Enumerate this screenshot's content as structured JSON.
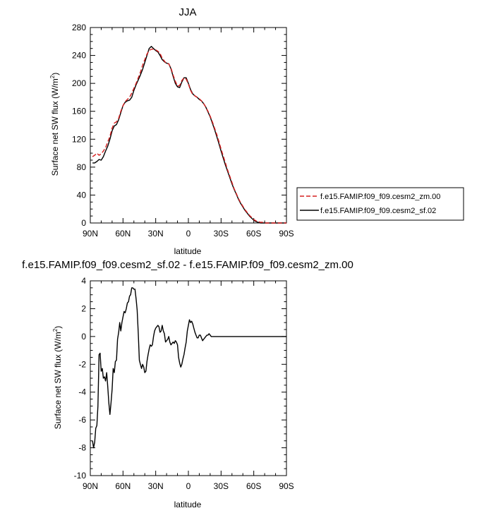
{
  "chart_data": [
    {
      "type": "line",
      "title": "JJA",
      "xlabel": "latitude",
      "ylabel": "Surface net SW flux (W/m",
      "ylabel_sup": "2",
      "ylabel_close": ")",
      "xlim": [
        90,
        -90
      ],
      "ylim": [
        0,
        280
      ],
      "xticks": [
        90,
        60,
        30,
        0,
        -30,
        -60,
        -90
      ],
      "xtick_labels": [
        "90N",
        "60N",
        "30N",
        "0",
        "30S",
        "60S",
        "90S"
      ],
      "yticks": [
        0,
        40,
        80,
        120,
        160,
        200,
        240,
        280
      ],
      "ytick_labels": [
        "0",
        "40",
        "80",
        "120",
        "160",
        "200",
        "240",
        "280"
      ],
      "legend_position": "right",
      "series": [
        {
          "name": "f.e15.FAMIP.f09_f09.cesm2_zm.00",
          "color": "#d62020",
          "dash": true,
          "x": [
            88,
            86,
            84,
            82,
            80,
            78,
            76,
            74,
            72,
            70,
            68,
            66,
            64,
            62,
            60,
            58,
            56,
            54,
            52,
            50,
            48,
            46,
            44,
            42,
            40,
            38,
            36,
            34,
            32,
            30,
            28,
            26,
            24,
            22,
            20,
            18,
            16,
            14,
            12,
            10,
            8,
            6,
            4,
            2,
            0,
            -2,
            -4,
            -6,
            -8,
            -10,
            -12,
            -14,
            -16,
            -18,
            -20,
            -22,
            -24,
            -26,
            -28,
            -30,
            -32,
            -34,
            -36,
            -38,
            -40,
            -42,
            -44,
            -46,
            -48,
            -50,
            -52,
            -54,
            -56,
            -58,
            -60,
            -62,
            -64,
            -66,
            -68,
            -70,
            -74,
            -78,
            -82,
            -86,
            -90
          ],
          "y": [
            95,
            97,
            100,
            97,
            99,
            103,
            108,
            116,
            124,
            136,
            143,
            145,
            150,
            160,
            168,
            174,
            177,
            180,
            186,
            193,
            200,
            208,
            216,
            226,
            234,
            242,
            247,
            249,
            249,
            248,
            246,
            243,
            236,
            232,
            228,
            228,
            222,
            212,
            203,
            196,
            197,
            204,
            208,
            206,
            199,
            190,
            184,
            182,
            180,
            178,
            175,
            171,
            166,
            160,
            153,
            145,
            136,
            127,
            117,
            106,
            96,
            86,
            76,
            67,
            58,
            49,
            42,
            35,
            29,
            24,
            19,
            15,
            11,
            8,
            5,
            3,
            2,
            1,
            1,
            0,
            0,
            0,
            0,
            0,
            0
          ]
        },
        {
          "name": "f.e15.FAMIP.f09_f09.cesm2_sf.02",
          "color": "#000000",
          "dash": false,
          "x": [
            88,
            86,
            84,
            82,
            80,
            78,
            76,
            74,
            72,
            70,
            68,
            66,
            64,
            62,
            60,
            58,
            56,
            54,
            52,
            50,
            48,
            46,
            44,
            42,
            40,
            38,
            36,
            34,
            32,
            30,
            28,
            26,
            24,
            22,
            20,
            18,
            16,
            14,
            12,
            10,
            8,
            6,
            4,
            2,
            0,
            -2,
            -4,
            -6,
            -8,
            -10,
            -12,
            -14,
            -16,
            -18,
            -20,
            -22,
            -24,
            -26,
            -28,
            -30,
            -32,
            -34,
            -36,
            -38,
            -40,
            -42,
            -44,
            -46,
            -48,
            -50,
            -52,
            -54,
            -56,
            -58,
            -60,
            -62,
            -64,
            -66,
            -68,
            -70,
            -74,
            -78,
            -82,
            -86,
            -90
          ],
          "y": [
            86,
            86,
            88,
            91,
            90,
            95,
            103,
            110,
            120,
            132,
            139,
            141,
            148,
            158,
            168,
            173,
            175,
            176,
            180,
            190,
            198,
            205,
            212,
            220,
            230,
            240,
            250,
            253,
            250,
            247,
            245,
            240,
            234,
            231,
            229,
            228,
            221,
            210,
            200,
            195,
            194,
            202,
            208,
            208,
            200,
            191,
            185,
            182,
            180,
            177,
            175,
            171,
            166,
            159,
            152,
            143,
            134,
            124,
            114,
            103,
            93,
            83,
            74,
            65,
            56,
            48,
            41,
            34,
            28,
            23,
            18,
            14,
            10,
            7,
            4,
            2,
            1,
            0,
            0,
            0,
            0,
            0,
            0,
            0,
            0
          ]
        }
      ]
    },
    {
      "type": "line",
      "title": "f.e15.FAMIP.f09_f09.cesm2_sf.02 - f.e15.FAMIP.f09_f09.cesm2_zm.00",
      "xlabel": "latitude",
      "ylabel": "Surface net SW flux (W/m",
      "ylabel_sup": "2",
      "ylabel_close": ")",
      "xlim": [
        90,
        -90
      ],
      "ylim": [
        -10,
        4
      ],
      "xticks": [
        90,
        60,
        30,
        0,
        -30,
        -60,
        -90
      ],
      "xtick_labels": [
        "90N",
        "60N",
        "30N",
        "0",
        "30S",
        "60S",
        "90S"
      ],
      "yticks": [
        -10,
        -8,
        -6,
        -4,
        -2,
        0,
        2,
        4
      ],
      "ytick_labels": [
        "-10",
        "-8",
        "-6",
        "-4",
        "-2",
        "0",
        "2",
        "4"
      ],
      "series": [
        {
          "color": "#000000",
          "dash": false,
          "x": [
            88,
            87,
            86,
            85,
            84,
            83,
            82,
            81,
            80,
            79,
            78,
            77,
            76,
            75,
            74,
            73,
            72,
            71,
            70,
            69,
            68,
            67,
            66,
            65,
            64,
            63,
            62,
            61,
            60,
            59,
            58,
            57,
            56,
            55,
            54,
            53,
            52,
            51,
            50,
            49,
            48,
            47,
            46,
            45,
            44,
            43,
            42,
            41,
            40,
            39,
            38,
            37,
            36,
            35,
            34,
            33,
            32,
            31,
            30,
            29,
            28,
            27,
            26,
            25,
            24,
            23,
            22,
            21,
            20,
            19,
            18,
            17,
            16,
            15,
            14,
            13,
            12,
            11,
            10,
            9,
            8,
            7,
            6,
            5,
            4,
            3,
            2,
            1,
            0,
            -1,
            -2,
            -3,
            -4,
            -5,
            -6,
            -7,
            -8,
            -9,
            -10,
            -11,
            -12,
            -13,
            -14,
            -15,
            -16,
            -17,
            -18,
            -19,
            -20,
            -21,
            -22,
            -23,
            -24,
            -25,
            -26,
            -27,
            -28,
            -29,
            -30,
            -31,
            -32,
            -33,
            -34,
            -35,
            -36,
            -37,
            -38,
            -39,
            -40,
            -42,
            -44,
            -46,
            -48,
            -50,
            -52,
            -55,
            -60,
            -65,
            -70,
            -80,
            -90
          ],
          "y": [
            -7.5,
            -8.0,
            -7.6,
            -6.6,
            -6.4,
            -5.0,
            -1.3,
            -1.2,
            -2.5,
            -2.3,
            -3.0,
            -2.9,
            -3.2,
            -2.6,
            -3.6,
            -4.8,
            -5.6,
            -4.8,
            -3.8,
            -2.3,
            -2.6,
            -1.8,
            -1.7,
            -0.2,
            0.3,
            1.0,
            0.4,
            1.0,
            1.4,
            1.8,
            1.7,
            2.0,
            2.4,
            2.5,
            2.9,
            3.0,
            3.5,
            3.5,
            3.4,
            3.4,
            2.7,
            1.9,
            0.2,
            -1.7,
            -2.0,
            -2.3,
            -2.0,
            -2.2,
            -2.6,
            -2.5,
            -1.8,
            -1.3,
            -0.9,
            -0.6,
            -0.7,
            -0.6,
            0.0,
            0.4,
            0.6,
            0.7,
            0.8,
            0.7,
            0.3,
            0.4,
            0.8,
            0.4,
            0.2,
            -0.4,
            -0.3,
            -0.2,
            0.0,
            -0.4,
            -0.6,
            -0.5,
            -0.4,
            -0.5,
            -0.3,
            -0.4,
            -0.6,
            -1.5,
            -1.9,
            -2.2,
            -2.0,
            -1.6,
            -1.3,
            -0.8,
            -0.4,
            0.4,
            0.8,
            1.2,
            1.0,
            1.1,
            0.9,
            0.6,
            0.3,
            0.1,
            -0.1,
            -0.1,
            0.1,
            0.1,
            -0.1,
            -0.3,
            -0.2,
            -0.1,
            0.0,
            0.1,
            0.1,
            0.2,
            0.1,
            0.0,
            0.0,
            0.0,
            0.0,
            0.0,
            0.0,
            0.0,
            0.0,
            0.0,
            0.0,
            0.0,
            0.0,
            0.0,
            0.0,
            0.0,
            0.0,
            0.0,
            0.0,
            0.0,
            0.0,
            0.0,
            0.0,
            0.0,
            0.0,
            0.0,
            0.0,
            0.0,
            0.0,
            0.0,
            0.0,
            0.0,
            0.0
          ]
        }
      ]
    }
  ]
}
